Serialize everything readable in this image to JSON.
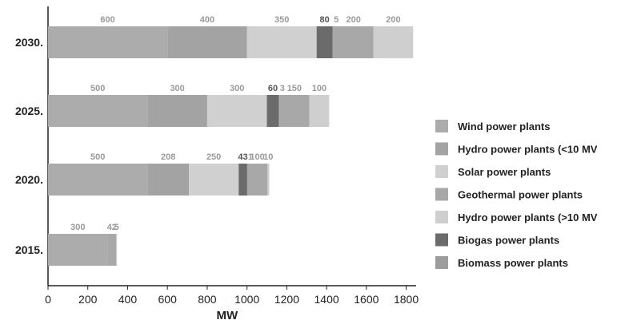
{
  "chart_data": {
    "type": "bar",
    "orientation": "horizontal",
    "stacked": true,
    "categories": [
      "2030.",
      "2025.",
      "2020.",
      "2015."
    ],
    "series": [
      {
        "name": "Wind power plants",
        "color": "#acacac",
        "values": [
          600,
          500,
          500,
          300
        ]
      },
      {
        "name": "Hydro power plants (<10 MV",
        "color": "#a3a3a3",
        "values": [
          400,
          300,
          208,
          0
        ]
      },
      {
        "name": "Solar power plants",
        "color": "#d0d0d0",
        "values": [
          350,
          300,
          250,
          0
        ]
      },
      {
        "name": "Biogas power plants",
        "color": "#6b6b6b",
        "values": [
          80,
          60,
          43,
          0
        ]
      },
      {
        "name": "Biomass power plants",
        "color": "#9d9d9d",
        "values": [
          5,
          3,
          1,
          0
        ]
      },
      {
        "name": "Geothermal power plants",
        "color": "#a8a8a8",
        "values": [
          200,
          150,
          100,
          42
        ]
      },
      {
        "name": "Hydro power plants (>10 MV",
        "color": "#cfcfcf",
        "values": [
          200,
          100,
          10,
          5
        ]
      }
    ],
    "segment_labels": [
      [
        "600",
        "400",
        "350",
        "80",
        "5",
        "200",
        "200"
      ],
      [
        "500",
        "300",
        "300",
        "60",
        "3",
        "150",
        "100"
      ],
      [
        "500",
        "208",
        "250",
        "43",
        "1",
        "100",
        "10"
      ],
      [
        "300",
        "",
        "",
        "",
        "",
        "42",
        "5"
      ]
    ],
    "legend_order": [
      "Wind power plants",
      "Hydro power plants (<10 MV",
      "Solar power plants",
      "Geothermal power plants",
      "Hydro power plants (>10 MV",
      "Biogas power plants",
      "Biomass power plants"
    ],
    "x_ticks": [
      0,
      200,
      400,
      600,
      800,
      1000,
      1200,
      1400,
      1600,
      1800
    ],
    "xlim": [
      0,
      1850
    ],
    "xlabel": "MW",
    "legend_position": "right"
  }
}
